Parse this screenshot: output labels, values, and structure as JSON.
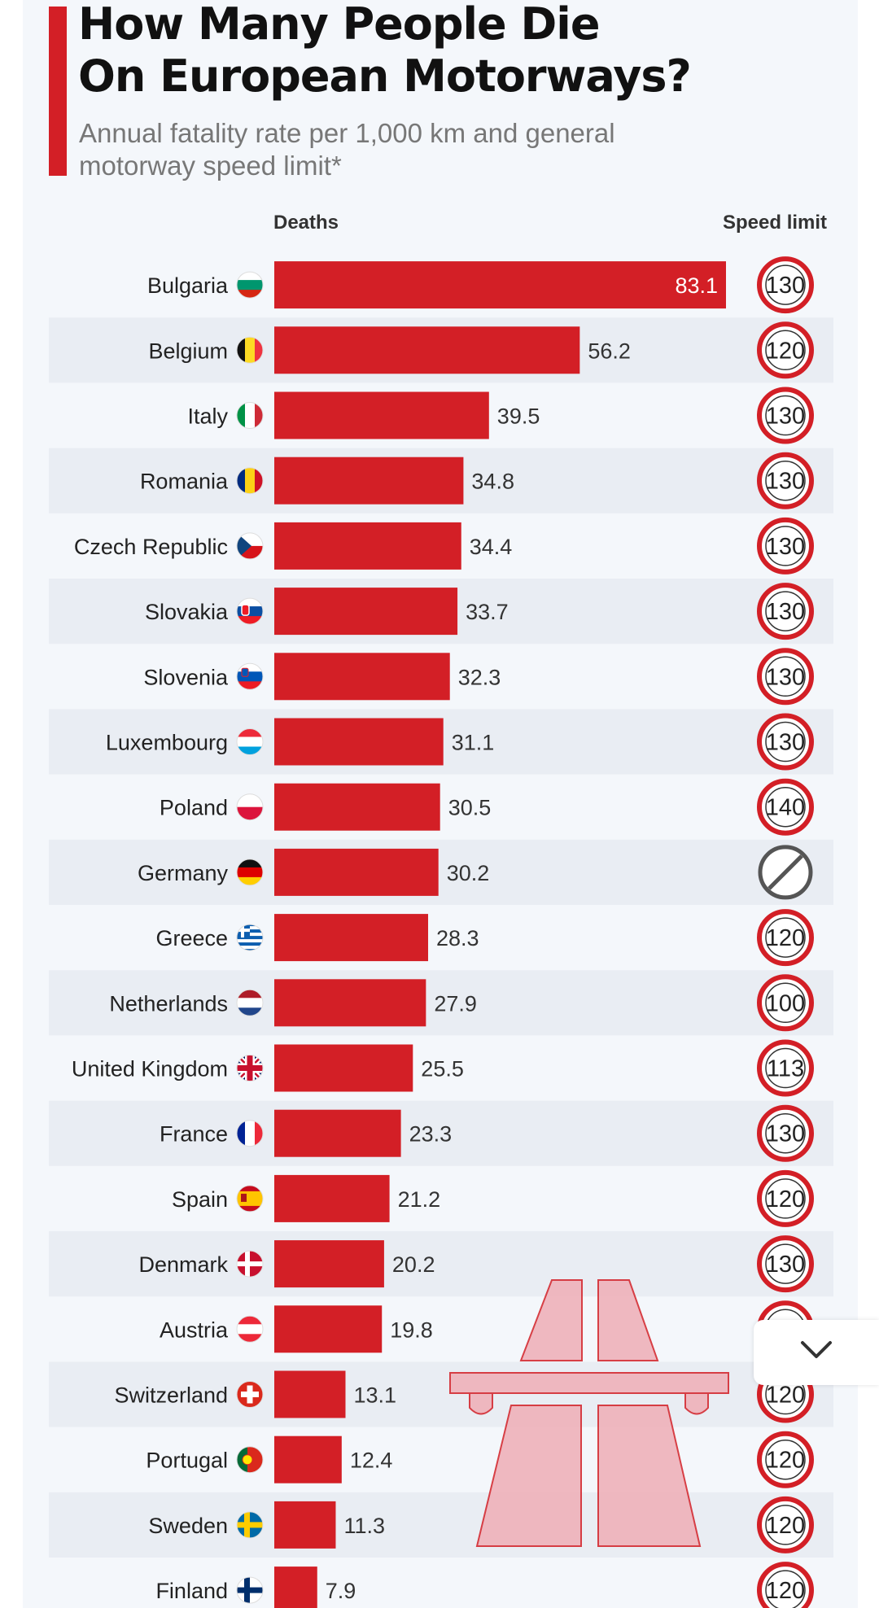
{
  "title_line1": "How Many People Die",
  "title_line2": "On European Motorways?",
  "subtitle_line1": "Annual fatality rate per 1,000 km and general",
  "subtitle_line2": "motorway speed limit*",
  "colors": {
    "bar": "#d31f26",
    "ring": "#d31f26",
    "no_limit_ring": "#555555",
    "stripe": "#e9edf3"
  },
  "chart_data": {
    "type": "bar",
    "orientation": "horizontal",
    "columns": {
      "deaths": "Deaths",
      "speed": "Speed limit"
    },
    "categories": [
      "Bulgaria",
      "Belgium",
      "Italy",
      "Romania",
      "Czech Republic",
      "Slovakia",
      "Slovenia",
      "Luxembourg",
      "Poland",
      "Germany",
      "Greece",
      "Netherlands",
      "United Kingdom",
      "France",
      "Spain",
      "Denmark",
      "Austria",
      "Switzerland",
      "Portugal",
      "Sweden",
      "Finland"
    ],
    "values": [
      83.1,
      56.2,
      39.5,
      34.8,
      34.4,
      33.7,
      32.3,
      31.1,
      30.5,
      30.2,
      28.3,
      27.9,
      25.5,
      23.3,
      21.2,
      20.2,
      19.8,
      13.1,
      12.4,
      11.3,
      7.9
    ],
    "value_labels": [
      "83.1",
      "56.2",
      "39.5",
      "34.8",
      "34.4",
      "33.7",
      "32.3",
      "31.1",
      "30.5",
      "30.2",
      "28.3",
      "27.9",
      "25.5",
      "23.3",
      "21.2",
      "20.2",
      "19.8",
      "13.1",
      "12.4",
      "11.3",
      "7.9"
    ],
    "speed_limits": [
      "130",
      "120",
      "130",
      "130",
      "130",
      "130",
      "130",
      "130",
      "140",
      "",
      "120",
      "100",
      "113",
      "130",
      "120",
      "130",
      "",
      "120",
      "120",
      "120",
      "120"
    ],
    "speed_icons": [
      "speed-sign",
      "speed-sign",
      "speed-sign",
      "speed-sign",
      "speed-sign",
      "speed-sign",
      "speed-sign",
      "speed-sign",
      "speed-sign",
      "no-limit-sign",
      "speed-sign",
      "speed-sign",
      "speed-sign",
      "speed-sign",
      "speed-sign",
      "speed-sign",
      "speed-sign",
      "speed-sign",
      "speed-sign",
      "speed-sign",
      "speed-sign"
    ],
    "flags": [
      "bulgaria-flag-icon",
      "belgium-flag-icon",
      "italy-flag-icon",
      "romania-flag-icon",
      "czech-republic-flag-icon",
      "slovakia-flag-icon",
      "slovenia-flag-icon",
      "luxembourg-flag-icon",
      "poland-flag-icon",
      "germany-flag-icon",
      "greece-flag-icon",
      "netherlands-flag-icon",
      "united-kingdom-flag-icon",
      "france-flag-icon",
      "spain-flag-icon",
      "denmark-flag-icon",
      "austria-flag-icon",
      "switzerland-flag-icon",
      "portugal-flag-icon",
      "sweden-flag-icon",
      "finland-flag-icon"
    ],
    "xlim": [
      0,
      83.1
    ],
    "grid": false,
    "legend": "none"
  },
  "decorations": {
    "motorway": "motorway-icon",
    "collapse": "chevron-down-icon"
  }
}
